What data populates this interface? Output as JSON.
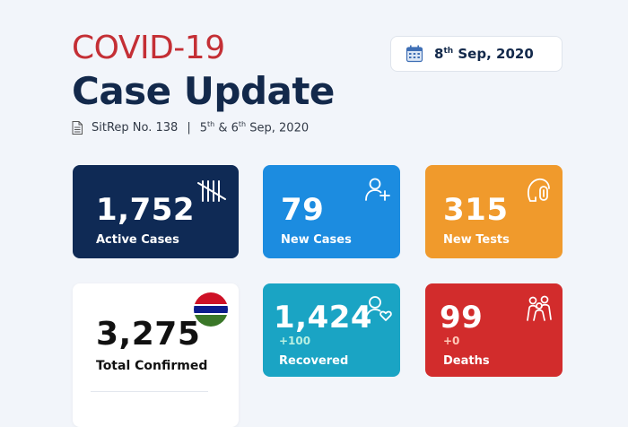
{
  "header": {
    "title_line1": "COVID-19",
    "title_line2": "Case Update",
    "sitrep_label": "SitRep No. 138",
    "separator": "|",
    "report_day_a": "5",
    "report_day_a_sup": "th",
    "report_day_b_prefix": " & 6",
    "report_day_b_sup": "th",
    "report_date_suffix": " Sep, 2020"
  },
  "date_badge": {
    "day": "8",
    "day_sup": "th",
    "rest": " Sep, 2020"
  },
  "cards": {
    "active": {
      "value": "1,752",
      "label": "Active Cases",
      "color": "#0f2a55",
      "icon": "tally-marks-icon"
    },
    "new_cases": {
      "value": "79",
      "label": "New Cases",
      "color": "#1c8ce0",
      "icon": "add-user-icon"
    },
    "new_tests": {
      "value": "315",
      "label": "New Tests",
      "color": "#f09a2c",
      "icon": "test-swab-icon"
    },
    "total_confirmed": {
      "value": "3,275",
      "label": "Total Confirmed",
      "icon": "gambia-flag-icon"
    },
    "recovered": {
      "value": "1,424",
      "delta": "+100",
      "label": "Recovered",
      "color": "#1aa4c4",
      "icon": "user-heart-icon"
    },
    "deaths": {
      "value": "99",
      "delta": "+0",
      "label": "Deaths",
      "color": "#d22c2c",
      "icon": "people-group-icon"
    }
  },
  "colors": {
    "brand_red": "#c42f35",
    "brand_navy": "#13294b",
    "background": "#f2f5fa"
  }
}
